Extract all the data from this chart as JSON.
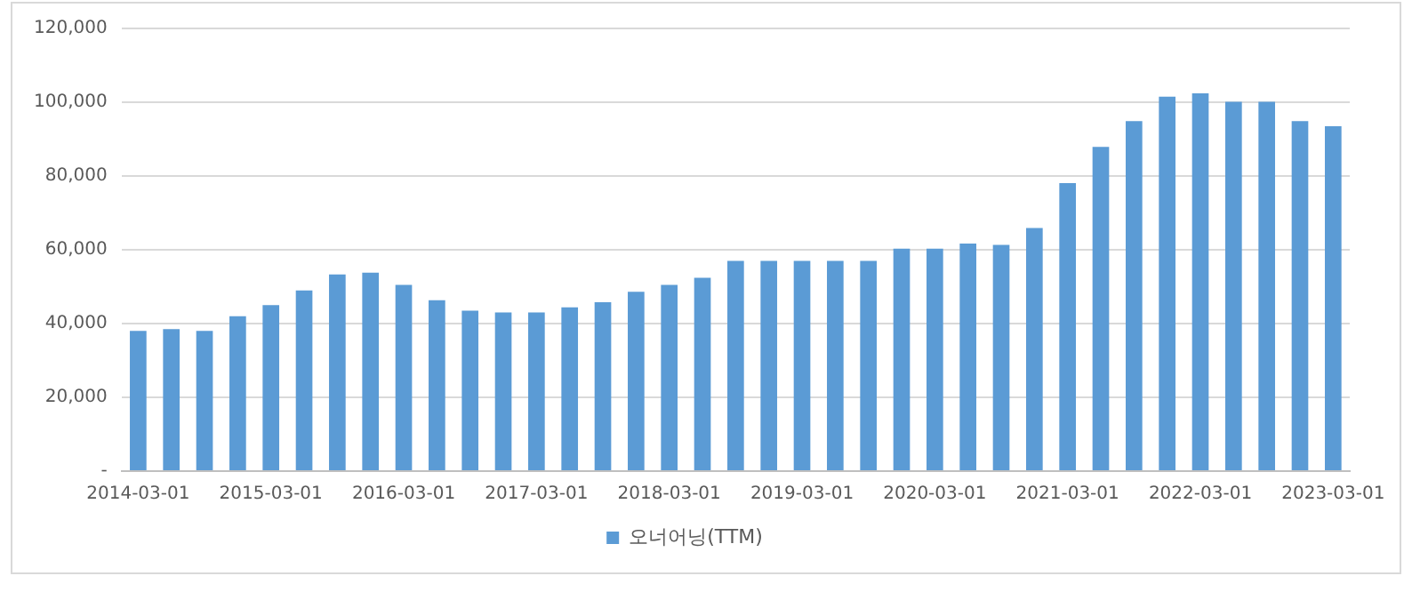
{
  "chart_data": {
    "type": "bar",
    "categories": [
      "2014-03-01",
      null,
      null,
      null,
      "2015-03-01",
      null,
      null,
      null,
      "2016-03-01",
      null,
      null,
      null,
      "2017-03-01",
      null,
      null,
      null,
      "2018-03-01",
      null,
      null,
      null,
      "2019-03-01",
      null,
      null,
      null,
      "2020-03-01",
      null,
      null,
      null,
      "2021-03-01",
      null,
      null,
      null,
      "2022-03-01",
      null,
      null,
      null,
      "2023-03-01"
    ],
    "series": [
      {
        "name": "오너어닝(TTM)",
        "color": "#5b9bd5",
        "values": [
          38000,
          38500,
          38000,
          42000,
          45000,
          49000,
          53300,
          53800,
          50500,
          46300,
          43500,
          43000,
          43000,
          44400,
          45800,
          48600,
          50500,
          52400,
          57000,
          57000,
          57000,
          57000,
          57000,
          60300,
          60300,
          61700,
          61300,
          65900,
          78100,
          87900,
          94900,
          101500,
          102400,
          100100,
          100100,
          94900,
          93500
        ]
      }
    ],
    "ylim": [
      0,
      120000
    ],
    "yticks": [
      {
        "value": 0,
        "label": "-"
      },
      {
        "value": 20000,
        "label": "20,000"
      },
      {
        "value": 40000,
        "label": "40,000"
      },
      {
        "value": 60000,
        "label": "60,000"
      },
      {
        "value": 80000,
        "label": "80,000"
      },
      {
        "value": 100000,
        "label": "100,000"
      },
      {
        "value": 120000,
        "label": "120,000"
      }
    ],
    "grid": "y",
    "legend": "bottom"
  }
}
